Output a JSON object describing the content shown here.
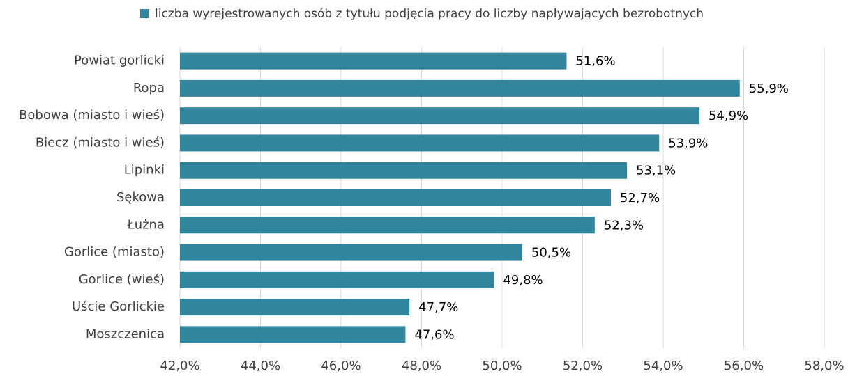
{
  "chart_data": {
    "type": "bar",
    "orientation": "horizontal",
    "legend": "top",
    "series": [
      {
        "name": "liczba wyrejestrowanych osób z tytułu podjęcia pracy do liczby napływających bezrobotnych",
        "color": "#31859c",
        "values": [
          51.6,
          55.9,
          54.9,
          53.9,
          53.1,
          52.7,
          52.3,
          50.5,
          49.8,
          47.7,
          47.6
        ],
        "value_labels": [
          "51,6%",
          "55,9%",
          "54,9%",
          "53,9%",
          "53,1%",
          "52,7%",
          "52,3%",
          "50,5%",
          "49,8%",
          "47,7%",
          "47,6%"
        ]
      }
    ],
    "categories": [
      "Powiat gorlicki",
      "Ropa",
      "Bobowa (miasto i wieś)",
      "Biecz (miasto i wieś)",
      "Lipinki",
      "Sękowa",
      "Łużna",
      "Gorlice (miasto)",
      "Gorlice (wieś)",
      "Uście Gorlickie",
      "Moszczenica"
    ],
    "xlim": [
      42,
      58
    ],
    "xticks": [
      {
        "value": 42,
        "label": "42,0%"
      },
      {
        "value": 44,
        "label": "44,0%"
      },
      {
        "value": 46,
        "label": "46,0%"
      },
      {
        "value": 48,
        "label": "48,0%"
      },
      {
        "value": 50,
        "label": "50,0%"
      },
      {
        "value": 52,
        "label": "52,0%"
      },
      {
        "value": 54,
        "label": "54,0%"
      },
      {
        "value": 56,
        "label": "56,0%"
      },
      {
        "value": 58,
        "label": "58,0%"
      }
    ],
    "grid": true
  }
}
